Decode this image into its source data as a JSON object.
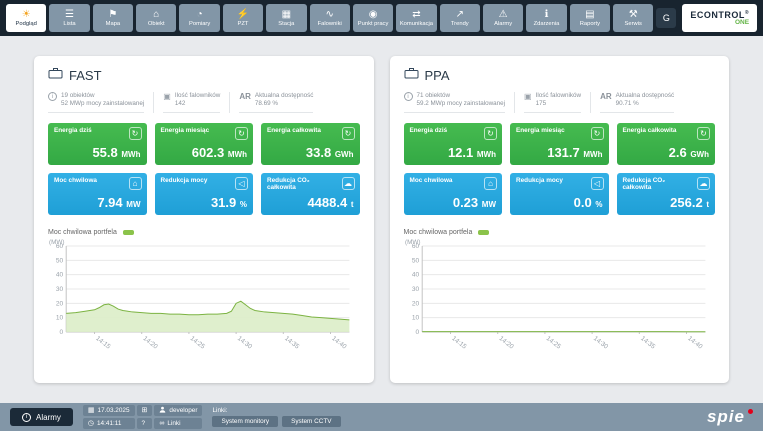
{
  "topbar": {
    "g_label": "G",
    "brand": "ECONTROL",
    "brand_reg": "®",
    "brand_one": "ONE",
    "items": [
      {
        "label": "Podgląd",
        "icon": "sun",
        "active": true
      },
      {
        "label": "Lista",
        "icon": "list"
      },
      {
        "label": "Mapa",
        "icon": "map"
      },
      {
        "label": "Obiekt",
        "icon": "building"
      },
      {
        "label": "Pomiary",
        "icon": "gauge"
      },
      {
        "label": "PZT",
        "icon": "bolt"
      },
      {
        "label": "Stacja",
        "icon": "station"
      },
      {
        "label": "Falowniki",
        "icon": "inverter"
      },
      {
        "label": "Punkt pracy",
        "icon": "target"
      },
      {
        "label": "Komunikacja",
        "icon": "antenna"
      },
      {
        "label": "Trendy",
        "icon": "trend"
      },
      {
        "label": "Alarmy",
        "icon": "alarm"
      },
      {
        "label": "Zdarzenia",
        "icon": "events"
      },
      {
        "label": "Raporty",
        "icon": "report"
      },
      {
        "label": "Serwis",
        "icon": "service"
      }
    ]
  },
  "icons": {
    "sun": "☀",
    "list": "☰",
    "map": "⚑",
    "building": "⌂",
    "gauge": "◔",
    "bolt": "⚡",
    "station": "▦",
    "inverter": "∿",
    "target": "◉",
    "antenna": "⇄",
    "trend": "↗",
    "alarm": "⚠",
    "events": "ℹ",
    "report": "▤",
    "service": "⚒",
    "sync": "↻",
    "factory": "⌂",
    "speaker": "◁",
    "cloud": "☁",
    "calendar": "▦",
    "clock": "◷",
    "link": "∞",
    "apps": "⊞",
    "inverters": "▣"
  },
  "panels": [
    {
      "title": "FAST",
      "objects": "19 obiektów",
      "installed": "52 MWp mocy zainstalowanej",
      "inverters_label": "Ilość falowników",
      "inverters_value": "142",
      "ar_label": "AR",
      "availability_label": "Aktualna dostępność",
      "availability_value": "78.69 %",
      "tiles": [
        {
          "label": "Energia dziś",
          "value": "55.8",
          "unit": "MWh",
          "icon": "sync",
          "color": "green"
        },
        {
          "label": "Energia miesiąc",
          "value": "602.3",
          "unit": "MWh",
          "icon": "sync",
          "color": "green"
        },
        {
          "label": "Energia całkowita",
          "value": "33.8",
          "unit": "GWh",
          "icon": "sync",
          "color": "green"
        },
        {
          "label": "Moc chwilowa",
          "value": "7.94",
          "unit": "MW",
          "icon": "factory",
          "color": "blue"
        },
        {
          "label": "Redukcja mocy",
          "value": "31.9",
          "unit": "%",
          "icon": "speaker",
          "color": "blue"
        },
        {
          "label": "Redukcja CO₂ całkowita",
          "value": "4488.4",
          "unit": "t",
          "icon": "cloud",
          "color": "blue"
        }
      ]
    },
    {
      "title": "PPA",
      "objects": "71 obiektów",
      "installed": "59.2 MWp mocy zainstalowanej",
      "inverters_label": "Ilość falowników",
      "inverters_value": "175",
      "ar_label": "AR",
      "availability_label": "Aktualna dostępność",
      "availability_value": "90.71 %",
      "tiles": [
        {
          "label": "Energia dziś",
          "value": "12.1",
          "unit": "MWh",
          "icon": "sync",
          "color": "green"
        },
        {
          "label": "Energia miesiąc",
          "value": "131.7",
          "unit": "MWh",
          "icon": "sync",
          "color": "green"
        },
        {
          "label": "Energia całkowita",
          "value": "2.6",
          "unit": "GWh",
          "icon": "sync",
          "color": "green"
        },
        {
          "label": "Moc chwilowa",
          "value": "0.23",
          "unit": "MW",
          "icon": "factory",
          "color": "blue"
        },
        {
          "label": "Redukcja mocy",
          "value": "0.0",
          "unit": "%",
          "icon": "speaker",
          "color": "blue"
        },
        {
          "label": "Redukcja CO₂ całkowita",
          "value": "256.2",
          "unit": "t",
          "icon": "cloud",
          "color": "blue"
        }
      ]
    }
  ],
  "chart_data": [
    {
      "type": "area",
      "title": "Moc chwilowa portfela",
      "ylabel": "(MW)",
      "ylim": [
        0,
        60
      ],
      "yticks": [
        0,
        10,
        20,
        30,
        40,
        50,
        60
      ],
      "x_domain": [
        0,
        30
      ],
      "xticks": [
        {
          "pos": 3,
          "label": "14:15"
        },
        {
          "pos": 8,
          "label": "14:20"
        },
        {
          "pos": 13,
          "label": "14:25"
        },
        {
          "pos": 18,
          "label": "14:30"
        },
        {
          "pos": 23,
          "label": "14:35"
        },
        {
          "pos": 28,
          "label": "14:40"
        }
      ],
      "series": [
        {
          "name": "Moc chwilowa portfela",
          "color": "#7cb342",
          "fill": "#dcedc8",
          "points": [
            [
              0,
              13
            ],
            [
              1,
              13.5
            ],
            [
              2,
              14.5
            ],
            [
              3,
              15.5
            ],
            [
              3.5,
              17
            ],
            [
              4,
              19
            ],
            [
              4.5,
              19.5
            ],
            [
              5,
              18
            ],
            [
              5.5,
              16
            ],
            [
              6,
              15
            ],
            [
              7,
              14
            ],
            [
              8,
              13.5
            ],
            [
              9,
              13
            ],
            [
              10,
              13
            ],
            [
              11,
              12.5
            ],
            [
              12,
              12.5
            ],
            [
              13,
              12
            ],
            [
              14,
              12
            ],
            [
              15,
              12.5
            ],
            [
              16,
              12.5
            ],
            [
              17,
              13
            ],
            [
              17.5,
              14.5
            ],
            [
              18,
              20
            ],
            [
              18.5,
              21.5
            ],
            [
              19,
              19
            ],
            [
              19.5,
              16.5
            ],
            [
              20,
              15
            ],
            [
              21,
              14
            ],
            [
              22,
              13.5
            ],
            [
              23,
              13
            ],
            [
              24,
              12.5
            ],
            [
              25,
              11.5
            ],
            [
              26,
              10.5
            ],
            [
              27,
              10
            ],
            [
              28,
              9.5
            ],
            [
              29,
              9
            ],
            [
              30,
              8.5
            ]
          ]
        }
      ]
    },
    {
      "type": "area",
      "title": "Moc chwilowa portfela",
      "ylabel": "(MW)",
      "ylim": [
        0,
        60
      ],
      "yticks": [
        0,
        10,
        20,
        30,
        40,
        50,
        60
      ],
      "x_domain": [
        0,
        30
      ],
      "xticks": [
        {
          "pos": 3,
          "label": "14:15"
        },
        {
          "pos": 8,
          "label": "14:20"
        },
        {
          "pos": 13,
          "label": "14:25"
        },
        {
          "pos": 18,
          "label": "14:30"
        },
        {
          "pos": 23,
          "label": "14:35"
        },
        {
          "pos": 28,
          "label": "14:40"
        }
      ],
      "series": [
        {
          "name": "Moc chwilowa portfela",
          "color": "#7cb342",
          "fill": "#dcedc8",
          "points": [
            [
              0,
              0.3
            ],
            [
              2,
              0.3
            ],
            [
              4,
              0.3
            ],
            [
              6,
              0.3
            ],
            [
              8,
              0.3
            ],
            [
              10,
              0.3
            ],
            [
              12,
              0.3
            ],
            [
              14,
              0.3
            ],
            [
              16,
              0.3
            ],
            [
              18,
              0.3
            ],
            [
              20,
              0.3
            ],
            [
              22,
              0.3
            ],
            [
              24,
              0.25
            ],
            [
              26,
              0.25
            ],
            [
              28,
              0.2
            ],
            [
              30,
              0.2
            ]
          ]
        }
      ]
    }
  ],
  "statusbar": {
    "alarms_label": "Alarmy",
    "date": "17.03.2025",
    "time": "14:41:11",
    "user": "developer",
    "help_label": "?",
    "linki_button": "Linki",
    "links_label": "Linki:",
    "links": [
      "System monitory",
      "System CCTV"
    ],
    "brand": "spie"
  }
}
